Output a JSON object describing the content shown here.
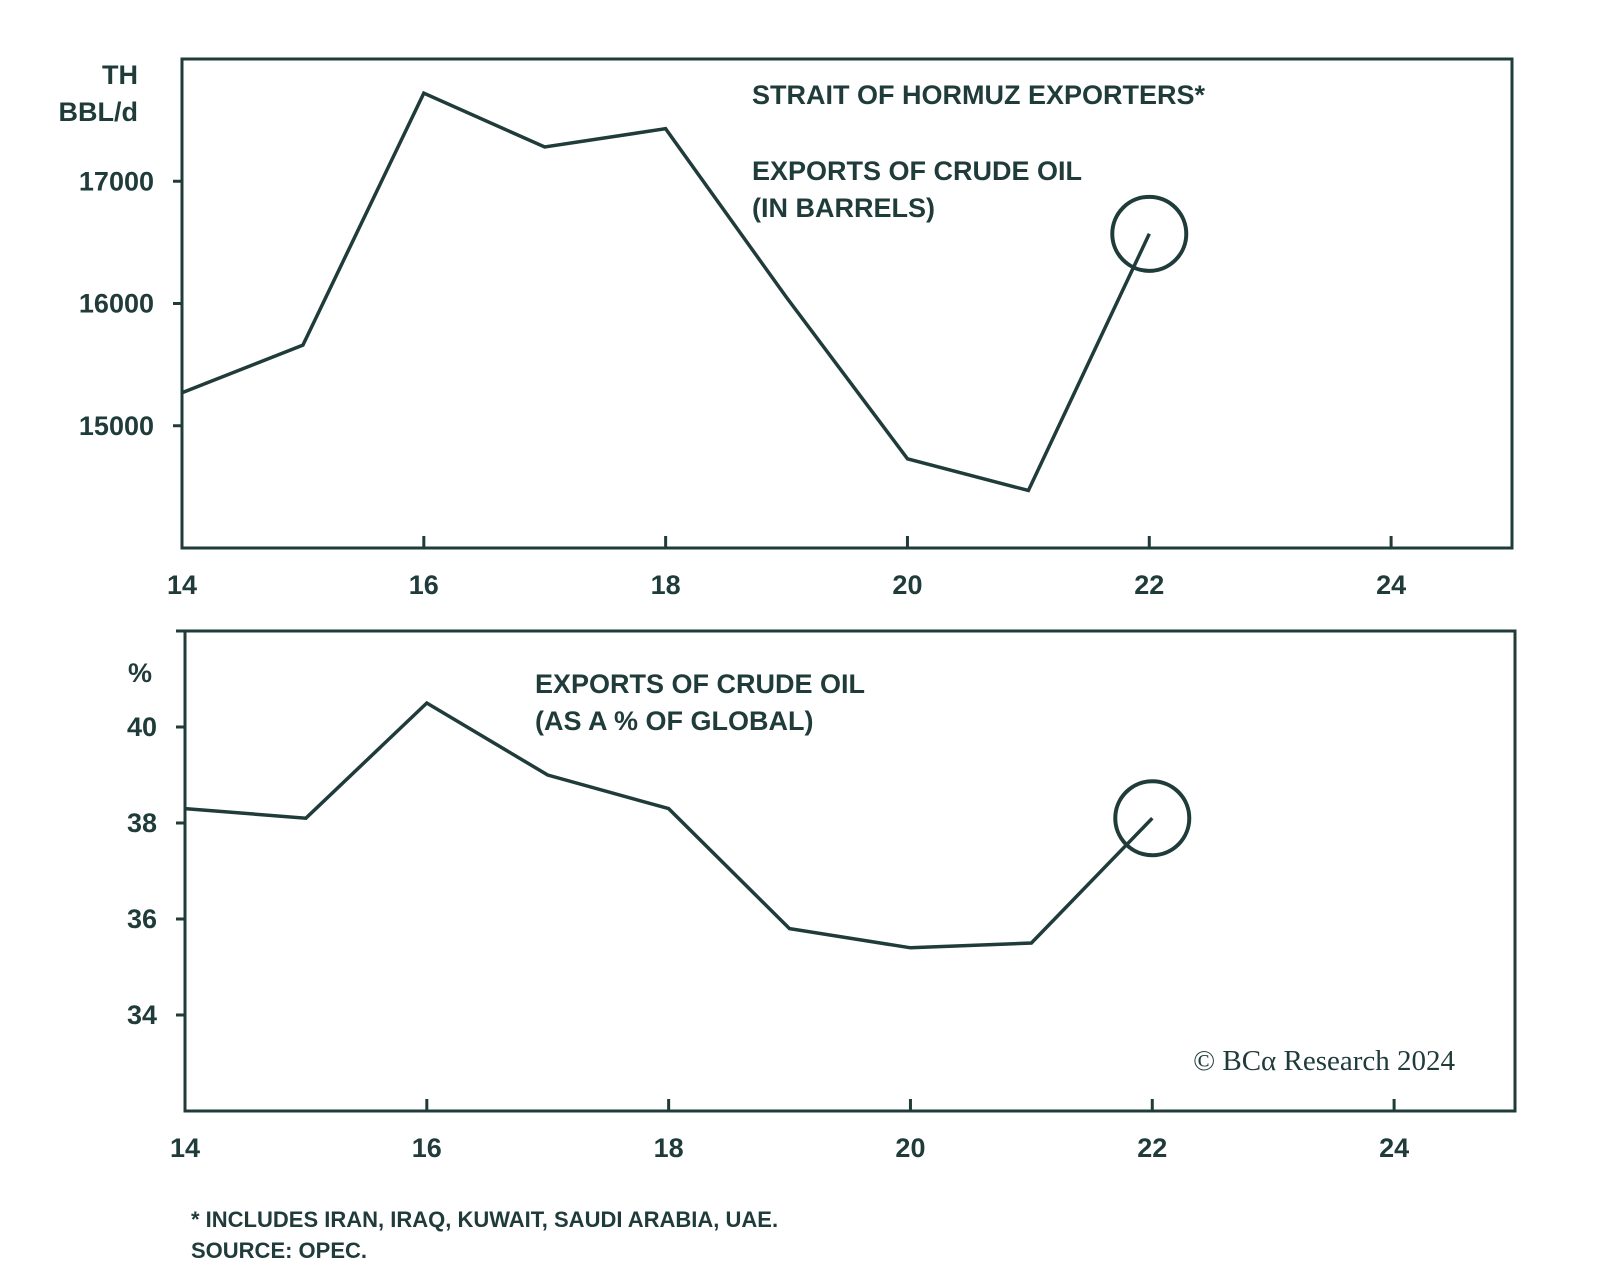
{
  "colors": {
    "ink": "#1f3b3a",
    "background": "#ffffff"
  },
  "chart_data": [
    {
      "type": "line",
      "title": "STRAIT OF HORMUZ EXPORTERS*",
      "subtitle": [
        "EXPORTS OF CRUDE OIL",
        "(IN BARRELS)"
      ],
      "yunit": [
        "TH",
        "BBL/d"
      ],
      "xlim": [
        14,
        25
      ],
      "ylim": [
        14000,
        18000
      ],
      "xticks": [
        "14",
        "16",
        "18",
        "20",
        "22",
        "24"
      ],
      "yticks": [
        "15000",
        "16000",
        "17000"
      ],
      "grid": false,
      "series": [
        {
          "x": [
            14,
            15,
            16,
            17,
            18,
            19,
            20,
            21,
            22
          ],
          "values": [
            15270,
            15660,
            17720,
            17280,
            17430,
            16050,
            14730,
            14470,
            16570
          ]
        }
      ],
      "highlight": {
        "x": 22,
        "y": 16570
      }
    },
    {
      "type": "line",
      "subtitle": [
        "EXPORTS OF CRUDE OIL",
        "(AS A % OF GLOBAL)"
      ],
      "yunit": [
        "%"
      ],
      "xlim": [
        14,
        25
      ],
      "ylim": [
        32,
        42
      ],
      "xticks": [
        "14",
        "16",
        "18",
        "20",
        "22",
        "24"
      ],
      "yticks": [
        "34",
        "36",
        "38",
        "40"
      ],
      "grid": false,
      "series": [
        {
          "x": [
            14,
            15,
            16,
            17,
            18,
            19,
            20,
            21,
            22
          ],
          "values": [
            38.3,
            38.1,
            40.5,
            39.0,
            38.3,
            35.8,
            35.4,
            35.5,
            38.1
          ]
        }
      ],
      "highlight": {
        "x": 22,
        "y": 38.1
      }
    }
  ],
  "watermark": "© BCα Research 2024",
  "footnotes": [
    "* INCLUDES IRAN, IRAQ, KUWAIT, SAUDI ARABIA, UAE.",
    "SOURCE: OPEC."
  ]
}
